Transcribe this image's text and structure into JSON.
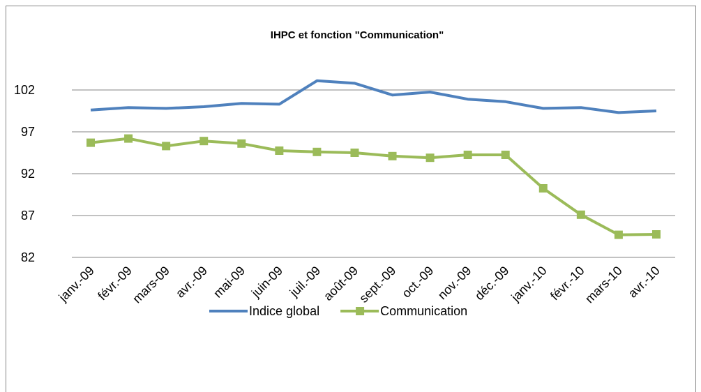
{
  "chart_data": {
    "type": "line",
    "title": "IHPC et fonction  \"Communication\"",
    "categories": [
      "janv.-09",
      "févr.-09",
      "mars-09",
      "avr.-09",
      "mai-09",
      "juin-09",
      "juil.-09",
      "août-09",
      "sept.-09",
      "oct.-09",
      "nov.-09",
      "déc.-09",
      "janv.-10",
      "févr.-10",
      "mars-10",
      "avr.-10"
    ],
    "series": [
      {
        "name": "Indice global",
        "color": "#4f81bd",
        "values": [
          99.6,
          99.9,
          99.8,
          100.0,
          100.4,
          100.3,
          103.1,
          102.8,
          101.4,
          101.75,
          100.9,
          100.6,
          99.8,
          99.9,
          99.3,
          99.5
        ]
      },
      {
        "name": "Communication",
        "color": "#9bbb59",
        "marker": "square",
        "values": [
          95.7,
          96.2,
          95.3,
          95.9,
          95.6,
          94.75,
          94.6,
          94.5,
          94.1,
          93.9,
          94.25,
          94.25,
          90.25,
          87.1,
          84.7,
          84.75
        ]
      }
    ],
    "ylim": [
      82,
      106
    ],
    "yticks": [
      82,
      87,
      92,
      97,
      102
    ],
    "grid": true,
    "legend": "bottom"
  }
}
